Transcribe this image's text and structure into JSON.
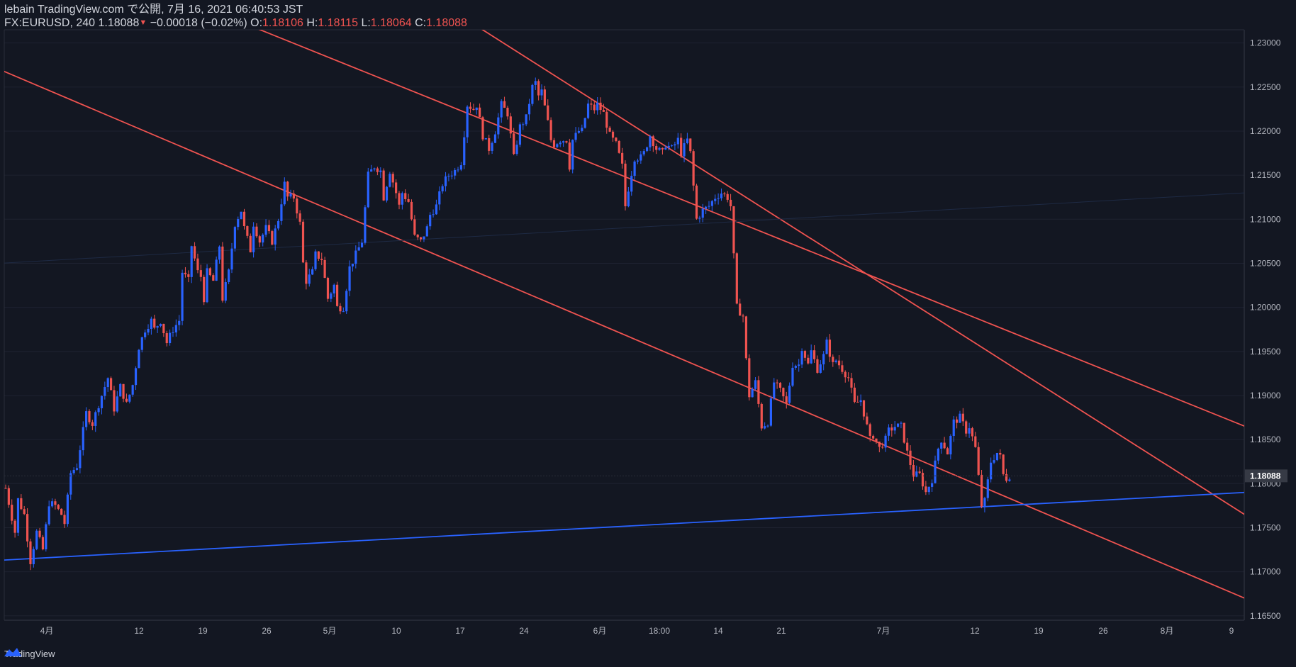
{
  "header": {
    "line1": "lebain TradingView.com で公開, 7月 16, 2021 06:40:53 JST",
    "symbol": "FX:EURUSD, 240",
    "last": "1.18088",
    "change": "−0.00018 (−0.02%)",
    "o_label": "O:",
    "o_value": "1.18106",
    "h_label": "H:",
    "h_value": "1.18115",
    "l_label": "L:",
    "l_value": "1.18064",
    "c_label": "C:",
    "c_value": "1.18088"
  },
  "footer": {
    "brand": "TradingView"
  },
  "colors": {
    "up": "#2962ff",
    "down": "#ef5350",
    "bg": "#131722",
    "grid": "#1e2230",
    "axis_text": "#b2b5be"
  },
  "chart_data": {
    "type": "candlestick",
    "ylim": [
      1.1645,
      1.2315
    ],
    "y_ticks": [
      "1.23000",
      "1.22500",
      "1.22000",
      "1.21500",
      "1.21000",
      "1.20500",
      "1.20000",
      "1.19500",
      "1.19000",
      "1.18500",
      "1.18000",
      "1.17500",
      "1.17000",
      "1.16500"
    ],
    "x_ticks": [
      "4月",
      "12",
      "19",
      "26",
      "5月",
      "10",
      "17",
      "24",
      "6月",
      "18:00",
      "14",
      "21",
      "7月",
      "12",
      "19",
      "26",
      "8月",
      "9"
    ],
    "last_price_label": "1.18088",
    "path": [
      [
        0,
        1.1795
      ],
      [
        3,
        1.1745
      ],
      [
        4,
        1.1782
      ],
      [
        6,
        1.1765
      ],
      [
        8,
        1.1712
      ],
      [
        10,
        1.1745
      ],
      [
        12,
        1.1725
      ],
      [
        14,
        1.1778
      ],
      [
        16,
        1.1775
      ],
      [
        18,
        1.1765
      ],
      [
        19,
        1.1755
      ],
      [
        21,
        1.1812
      ],
      [
        23,
        1.182
      ],
      [
        26,
        1.188
      ],
      [
        28,
        1.1868
      ],
      [
        30,
        1.189
      ],
      [
        33,
        1.192
      ],
      [
        35,
        1.1885
      ],
      [
        37,
        1.191
      ],
      [
        39,
        1.189
      ],
      [
        41,
        1.1912
      ],
      [
        43,
        1.1955
      ],
      [
        45,
        1.1975
      ],
      [
        47,
        1.1985
      ],
      [
        48,
        1.1975
      ],
      [
        50,
        1.1985
      ],
      [
        52,
        1.196
      ],
      [
        54,
        1.1975
      ],
      [
        56,
        1.1985
      ],
      [
        57,
        1.204
      ],
      [
        59,
        1.203
      ],
      [
        60,
        1.207
      ],
      [
        62,
        1.204
      ],
      [
        63,
        1.2035
      ],
      [
        64,
        1.201
      ],
      [
        65,
        1.204
      ],
      [
        67,
        1.203
      ],
      [
        69,
        1.207
      ],
      [
        70,
        1.201
      ],
      [
        72,
        1.204
      ],
      [
        74,
        1.2095
      ],
      [
        76,
        1.211
      ],
      [
        77,
        1.209
      ],
      [
        79,
        1.2065
      ],
      [
        80,
        1.2095
      ],
      [
        82,
        1.2075
      ],
      [
        84,
        1.209
      ],
      [
        86,
        1.2075
      ],
      [
        88,
        1.21
      ],
      [
        90,
        1.214
      ],
      [
        91,
        1.2125
      ],
      [
        93,
        1.2125
      ],
      [
        95,
        1.2095
      ],
      [
        96,
        1.205
      ],
      [
        97,
        1.203
      ],
      [
        99,
        1.204
      ],
      [
        100,
        1.206
      ],
      [
        102,
        1.2055
      ],
      [
        104,
        1.201
      ],
      [
        106,
        1.2025
      ],
      [
        107,
        1.2
      ],
      [
        109,
        1.2
      ],
      [
        111,
        1.2045
      ],
      [
        113,
        1.206
      ],
      [
        115,
        1.2075
      ],
      [
        117,
        1.215
      ],
      [
        119,
        1.216
      ],
      [
        121,
        1.2155
      ],
      [
        122,
        1.2125
      ],
      [
        124,
        1.2155
      ],
      [
        126,
        1.213
      ],
      [
        127,
        1.2115
      ],
      [
        128,
        1.213
      ],
      [
        130,
        1.212
      ],
      [
        132,
        1.208
      ],
      [
        134,
        1.2075
      ],
      [
        136,
        1.209
      ],
      [
        137,
        1.2105
      ],
      [
        139,
        1.2115
      ],
      [
        141,
        1.214
      ],
      [
        143,
        1.215
      ],
      [
        145,
        1.2155
      ],
      [
        147,
        1.2165
      ],
      [
        149,
        1.223
      ],
      [
        151,
        1.2225
      ],
      [
        152,
        1.223
      ],
      [
        154,
        1.2195
      ],
      [
        156,
        1.218
      ],
      [
        158,
        1.22
      ],
      [
        160,
        1.223
      ],
      [
        162,
        1.222
      ],
      [
        164,
        1.217
      ],
      [
        166,
        1.2205
      ],
      [
        168,
        1.2215
      ],
      [
        170,
        1.225
      ],
      [
        171,
        1.2255
      ],
      [
        172,
        1.224
      ],
      [
        173,
        1.2245
      ],
      [
        175,
        1.221
      ],
      [
        176,
        1.219
      ],
      [
        177,
        1.2185
      ],
      [
        179,
        1.219
      ],
      [
        181,
        1.219
      ],
      [
        182,
        1.216
      ],
      [
        183,
        1.219
      ],
      [
        185,
        1.22
      ],
      [
        186,
        1.22
      ],
      [
        188,
        1.223
      ],
      [
        190,
        1.2225
      ],
      [
        191,
        1.223
      ],
      [
        193,
        1.222
      ],
      [
        195,
        1.2195
      ],
      [
        197,
        1.2185
      ],
      [
        199,
        1.216
      ],
      [
        200,
        1.2115
      ],
      [
        201,
        1.2135
      ],
      [
        203,
        1.217
      ],
      [
        205,
        1.217
      ],
      [
        206,
        1.2175
      ],
      [
        208,
        1.2195
      ],
      [
        210,
        1.218
      ],
      [
        212,
        1.2175
      ],
      [
        213,
        1.2185
      ],
      [
        215,
        1.218
      ],
      [
        217,
        1.219
      ],
      [
        218,
        1.2175
      ],
      [
        220,
        1.219
      ],
      [
        221,
        1.2175
      ],
      [
        223,
        1.21
      ],
      [
        225,
        1.211
      ],
      [
        227,
        1.2115
      ],
      [
        229,
        1.2125
      ],
      [
        231,
        1.213
      ],
      [
        233,
        1.2125
      ],
      [
        234,
        1.2115
      ],
      [
        236,
        1.2
      ],
      [
        238,
        1.199
      ],
      [
        239,
        1.194
      ],
      [
        240,
        1.19
      ],
      [
        242,
        1.1915
      ],
      [
        244,
        1.1865
      ],
      [
        246,
        1.187
      ],
      [
        248,
        1.1915
      ],
      [
        250,
        1.1905
      ],
      [
        252,
        1.189
      ],
      [
        254,
        1.1935
      ],
      [
        256,
        1.1935
      ],
      [
        257,
        1.1955
      ],
      [
        259,
        1.1935
      ],
      [
        260,
        1.195
      ],
      [
        262,
        1.193
      ],
      [
        264,
        1.1945
      ],
      [
        265,
        1.196
      ],
      [
        267,
        1.1935
      ],
      [
        268,
        1.194
      ],
      [
        270,
        1.193
      ],
      [
        272,
        1.192
      ],
      [
        274,
        1.189
      ],
      [
        276,
        1.1895
      ],
      [
        277,
        1.188
      ],
      [
        279,
        1.185
      ],
      [
        280,
        1.1855
      ],
      [
        282,
        1.184
      ],
      [
        284,
        1.185
      ],
      [
        285,
        1.186
      ],
      [
        287,
        1.1865
      ],
      [
        289,
        1.1865
      ],
      [
        291,
        1.1835
      ],
      [
        293,
        1.181
      ],
      [
        295,
        1.181
      ],
      [
        297,
        1.179
      ],
      [
        299,
        1.1805
      ],
      [
        301,
        1.184
      ],
      [
        302,
        1.185
      ],
      [
        304,
        1.1835
      ],
      [
        306,
        1.187
      ],
      [
        308,
        1.1875
      ],
      [
        310,
        1.186
      ],
      [
        311,
        1.1865
      ],
      [
        313,
        1.184
      ],
      [
        315,
        1.1775
      ],
      [
        316,
        1.178
      ],
      [
        318,
        1.1825
      ],
      [
        320,
        1.1835
      ],
      [
        321,
        1.183
      ],
      [
        322,
        1.181
      ],
      [
        323,
        1.1806
      ],
      [
        324,
        1.1809
      ]
    ],
    "trend_lines": [
      {
        "color": "#ef5350",
        "from": [
          -2,
          1.227
        ],
        "to": [
          420,
          1.164
        ]
      },
      {
        "color": "#ef5350",
        "from": [
          68,
          1.2335
        ],
        "to": [
          400,
          1.1865
        ]
      },
      {
        "color": "#ef5350",
        "from": [
          145,
          1.2335
        ],
        "to": [
          420,
          1.172
        ]
      },
      {
        "color": "#2962ff",
        "from": [
          -2,
          1.1713
        ],
        "to": [
          400,
          1.179
        ]
      },
      {
        "color": "#1e2a44",
        "from": [
          -2,
          1.205
        ],
        "to": [
          400,
          1.213
        ]
      }
    ],
    "grid": true
  }
}
